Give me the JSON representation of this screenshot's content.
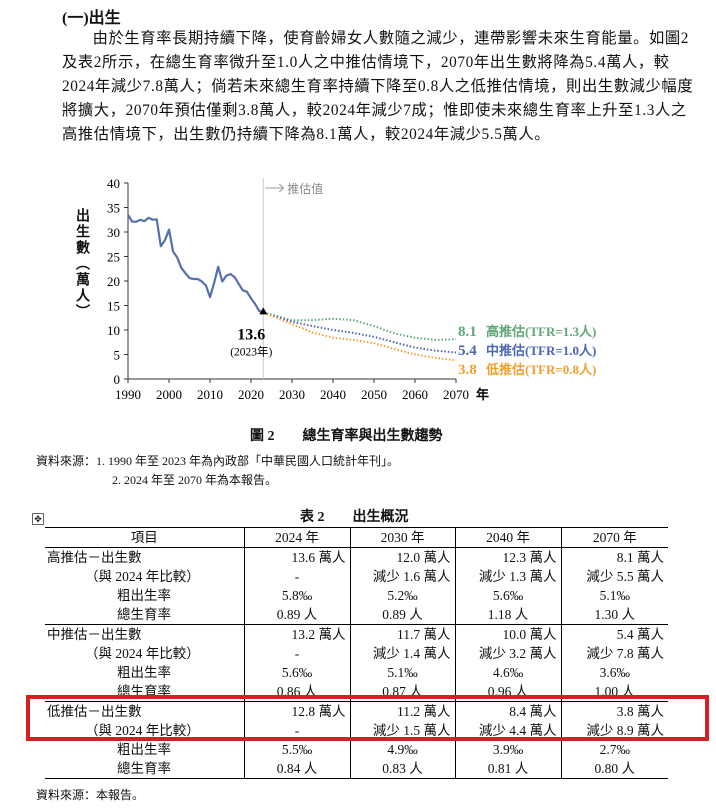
{
  "section": {
    "heading": "(一)出生",
    "paragraph": "由於生育率長期持續下降，使育齡婦女人數隨之減少，連帶影響未來生育能量。如圖2及表2所示，在總生育率微升至1.0人之中推估情境下，2070年出生數將降為5.4萬人，較2024年減少7.8萬人；倘若未來總生育率持續下降至0.8人之低推估情境，則出生數減少幅度將擴大，2070年預估僅剩3.8萬人，較2024年減少7成；惟即使未來總生育率上升至1.3人之高推估情境下，出生數仍持續下降為8.1萬人，較2024年減少5.5萬人。"
  },
  "figure": {
    "caption": "圖 2　　總生育率與出生數趨勢",
    "source_line1": "資料來源：1. 1990 年至 2023 年為內政部「中華民國人口統計年刊」。",
    "source_line2": "2. 2024 年至 2070 年為本報告。"
  },
  "chart_data": {
    "type": "line",
    "ylabel": "出生數（萬人）",
    "xlabel": "年",
    "ylim": [
      0,
      40
    ],
    "xlim": [
      1990,
      2070
    ],
    "yticks": [
      "0",
      "5",
      "10",
      "15",
      "20",
      "25",
      "30",
      "35",
      "40"
    ],
    "xticks": [
      "1990",
      "2000",
      "2010",
      "2020",
      "2030",
      "2040",
      "2050",
      "2060",
      "2070"
    ],
    "projection_marker": "推估值",
    "projection_start": 2023,
    "annotation": {
      "value": "13.6",
      "sub": "(2023年)"
    },
    "colors": {
      "actual": "#5470b0",
      "high": "#5fa777",
      "medium": "#4a67b8",
      "low": "#f0a030"
    },
    "series": [
      {
        "key": "actual",
        "x": [
          1990,
          1991,
          1992,
          1993,
          1994,
          1995,
          1996,
          1997,
          1998,
          1999,
          2000,
          2001,
          2002,
          2003,
          2004,
          2005,
          2006,
          2007,
          2008,
          2009,
          2010,
          2011,
          2012,
          2013,
          2014,
          2015,
          2016,
          2017,
          2018,
          2019,
          2020,
          2021,
          2022,
          2023
        ],
        "y": [
          33.5,
          32.1,
          32.1,
          32.5,
          32.2,
          32.9,
          32.5,
          32.6,
          27.1,
          28.3,
          30.5,
          26.0,
          24.8,
          22.7,
          21.6,
          20.6,
          20.4,
          20.4,
          19.9,
          19.1,
          16.7,
          19.6,
          22.9,
          19.9,
          21.1,
          21.4,
          20.8,
          19.4,
          18.1,
          17.8,
          16.5,
          15.3,
          13.9,
          13.6
        ]
      },
      {
        "key": "high",
        "name": "高推估(TFR=1.3人)",
        "end_label": "8.1",
        "x": [
          2023,
          2030,
          2035,
          2040,
          2045,
          2050,
          2055,
          2060,
          2065,
          2070
        ],
        "y": [
          13.6,
          12.0,
          12.0,
          12.3,
          12.0,
          10.8,
          9.3,
          8.4,
          8.0,
          8.1
        ]
      },
      {
        "key": "medium",
        "name": "中推估(TFR=1.0人)",
        "end_label": "5.4",
        "x": [
          2023,
          2030,
          2035,
          2040,
          2045,
          2050,
          2055,
          2060,
          2065,
          2070
        ],
        "y": [
          13.6,
          11.7,
          10.8,
          10.0,
          9.4,
          8.6,
          7.5,
          6.4,
          5.8,
          5.4
        ]
      },
      {
        "key": "low",
        "name": "低推估(TFR=0.8人)",
        "end_label": "3.8",
        "x": [
          2023,
          2030,
          2035,
          2040,
          2045,
          2050,
          2055,
          2060,
          2065,
          2070
        ],
        "y": [
          13.6,
          11.2,
          9.5,
          8.4,
          8.0,
          7.3,
          6.1,
          5.0,
          4.3,
          3.8
        ]
      }
    ]
  },
  "table": {
    "caption": "表 2　　出生概況",
    "headers": [
      "項目",
      "2024 年",
      "2030 年",
      "2040 年",
      "2070 年"
    ],
    "rows": [
      [
        "高推估－出生數",
        "13.6 萬人",
        "12.0 萬人",
        "12.3 萬人",
        "8.1 萬人"
      ],
      [
        "（與 2024 年比較）",
        "-",
        "減少 1.6 萬人",
        "減少 1.3 萬人",
        "減少 5.5 萬人"
      ],
      [
        "粗出生率",
        "5.8‰",
        "5.2‰",
        "5.6‰",
        "5.1‰"
      ],
      [
        "總生育率",
        "0.89 人",
        "0.89 人",
        "1.18 人",
        "1.30 人"
      ],
      [
        "中推估－出生數",
        "13.2 萬人",
        "11.7 萬人",
        "10.0 萬人",
        "5.4 萬人"
      ],
      [
        "（與 2024 年比較）",
        "-",
        "減少 1.4 萬人",
        "減少 3.2 萬人",
        "減少 7.8 萬人"
      ],
      [
        "粗出生率",
        "5.6‰",
        "5.1‰",
        "4.6‰",
        "3.6‰"
      ],
      [
        "總生育率",
        "0.86 人",
        "0.87 人",
        "0.96 人",
        "1.00 人"
      ],
      [
        "低推估－出生數",
        "12.8 萬人",
        "11.2 萬人",
        "8.4 萬人",
        "3.8 萬人"
      ],
      [
        "（與 2024 年比較）",
        "-",
        "減少 1.5 萬人",
        "減少 4.4 萬人",
        "減少 8.9 萬人"
      ],
      [
        "粗出生率",
        "5.5‰",
        "4.9‰",
        "3.9‰",
        "2.7‰"
      ],
      [
        "總生育率",
        "0.84 人",
        "0.83 人",
        "0.81 人",
        "0.80 人"
      ]
    ],
    "source": "資料來源：本報告。",
    "highlight_color": "#d32027"
  }
}
